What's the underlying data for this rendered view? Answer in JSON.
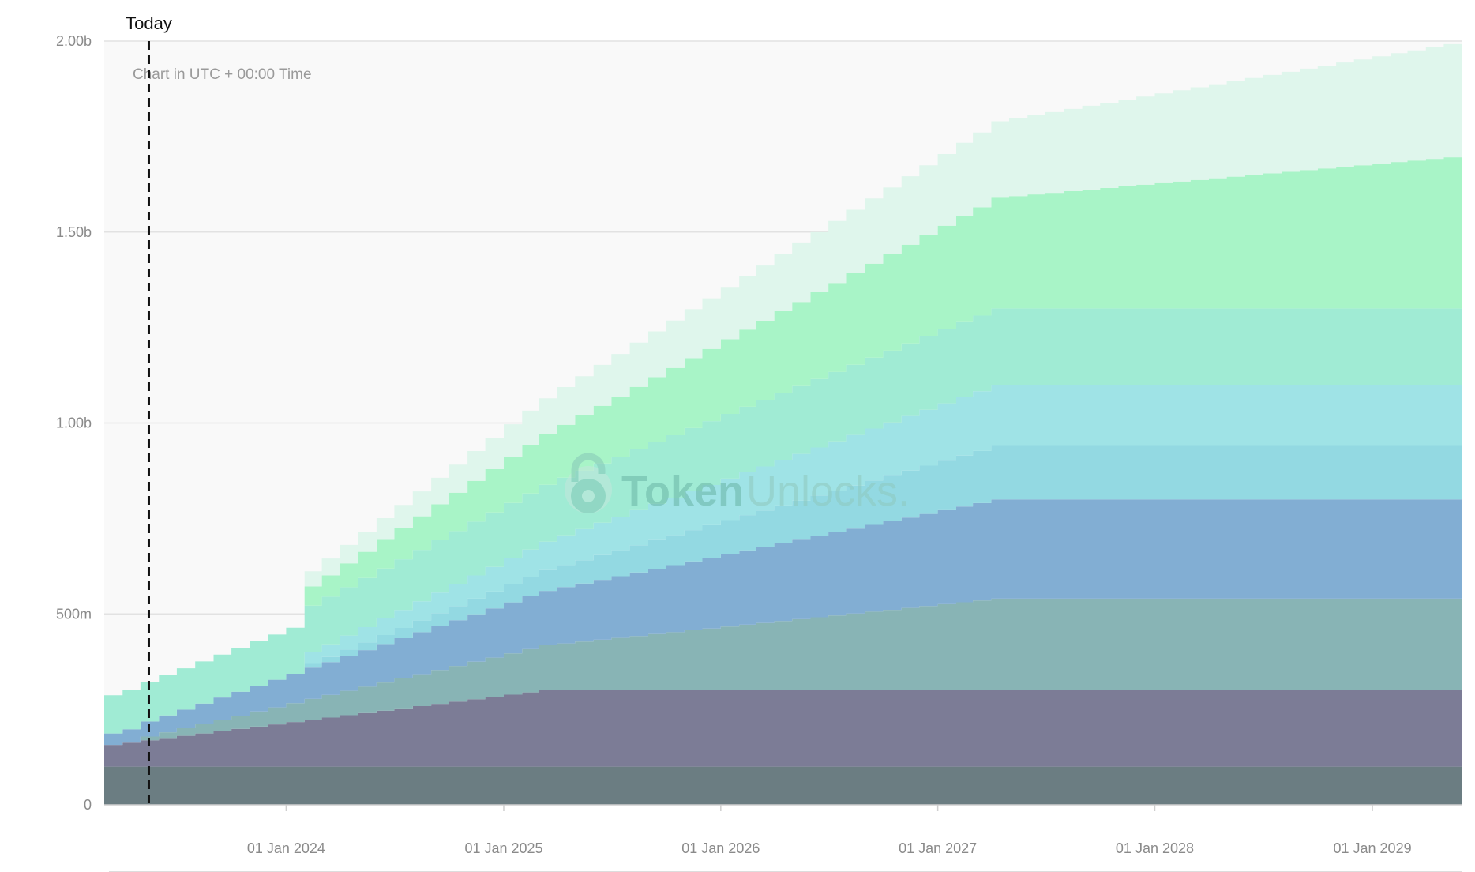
{
  "chart_data": {
    "type": "area",
    "stacked": true,
    "step": true,
    "title": "",
    "xlabel": "",
    "ylabel": "",
    "today_label": "Today",
    "today_date": "2023-05-15",
    "note": "Chart in UTC + 00:00 Time",
    "watermark": {
      "brand_bold": "Token",
      "brand_light": "Unlocks."
    },
    "x_range": [
      "2023-03-01",
      "2029-05-31"
    ],
    "ylim": [
      0,
      2000000000
    ],
    "y_ticks": [
      {
        "value": 0,
        "label": "0"
      },
      {
        "value": 500000000,
        "label": "500m"
      },
      {
        "value": 1000000000,
        "label": "1.00b"
      },
      {
        "value": 1500000000,
        "label": "1.50b"
      },
      {
        "value": 2000000000,
        "label": "2.00b"
      }
    ],
    "x_ticks": [
      {
        "date": "2024-01-01",
        "label": "01 Jan 2024"
      },
      {
        "date": "2025-01-01",
        "label": "01 Jan 2025"
      },
      {
        "date": "2026-01-01",
        "label": "01 Jan 2026"
      },
      {
        "date": "2027-01-01",
        "label": "01 Jan 2027"
      },
      {
        "date": "2028-01-01",
        "label": "01 Jan 2028"
      },
      {
        "date": "2029-01-01",
        "label": "01 Jan 2029"
      }
    ],
    "grid": true,
    "series_note": "values are per-series amounts (not cumulative), listed bottom to top",
    "series": [
      {
        "color": "#6b7d82",
        "steps": [
          {
            "start": "2023-03-01",
            "end": "2029-05-31",
            "values": [
              100000000
            ]
          }
        ]
      },
      {
        "color": "#7c7c96",
        "steps": [
          {
            "start": "2023-03-01",
            "end": "2025-03-01",
            "values": [
              57000000,
              200000000
            ]
          },
          {
            "start": "2025-03-01",
            "end": "2029-05-31",
            "values": [
              200000000
            ]
          }
        ]
      },
      {
        "color": "#88b4b5",
        "steps": [
          {
            "start": "2023-03-01",
            "end": "2023-05-01",
            "values": [
              0
            ]
          },
          {
            "start": "2023-05-01",
            "end": "2027-04-01",
            "values": [
              10000000,
              240000000
            ]
          },
          {
            "start": "2027-04-01",
            "end": "2029-05-31",
            "values": [
              240000000
            ]
          }
        ]
      },
      {
        "color": "#82aed3",
        "steps": [
          {
            "start": "2023-03-01",
            "end": "2027-04-01",
            "values": [
              30000000,
              260000000
            ]
          },
          {
            "start": "2027-04-01",
            "end": "2029-05-31",
            "values": [
              260000000
            ]
          }
        ]
      },
      {
        "color": "#93d9e2",
        "steps": [
          {
            "start": "2023-03-01",
            "end": "2024-02-01",
            "values": [
              0
            ]
          },
          {
            "start": "2024-02-01",
            "end": "2027-04-01",
            "values": [
              10000000,
              140000000
            ]
          },
          {
            "start": "2027-04-01",
            "end": "2029-05-31",
            "values": [
              140000000
            ]
          }
        ]
      },
      {
        "color": "#9fe3e6",
        "steps": [
          {
            "start": "2023-03-01",
            "end": "2024-02-01",
            "values": [
              0
            ]
          },
          {
            "start": "2024-02-01",
            "end": "2027-04-01",
            "values": [
              30000000,
              160000000
            ]
          },
          {
            "start": "2027-04-01",
            "end": "2029-05-31",
            "values": [
              160000000
            ]
          }
        ]
      },
      {
        "color": "#a0ebd4",
        "steps": [
          {
            "start": "2023-03-01",
            "end": "2027-04-01",
            "values": [
              100000000,
              200000000
            ]
          },
          {
            "start": "2027-04-01",
            "end": "2029-05-31",
            "values": [
              200000000
            ]
          }
        ]
      },
      {
        "color": "#a8f4c7",
        "steps": [
          {
            "start": "2023-03-01",
            "end": "2024-02-01",
            "values": [
              0
            ]
          },
          {
            "start": "2024-02-01",
            "end": "2027-04-01",
            "values": [
              50000000,
              290000000
            ]
          },
          {
            "start": "2027-04-01",
            "end": "2029-05-31",
            "values": [
              290000000,
              400000000
            ]
          }
        ]
      },
      {
        "color": "#dff6ec",
        "steps": [
          {
            "start": "2023-03-01",
            "end": "2024-02-01",
            "values": [
              0
            ]
          },
          {
            "start": "2024-02-01",
            "end": "2027-04-01",
            "values": [
              40000000,
              200000000
            ]
          },
          {
            "start": "2027-04-01",
            "end": "2029-05-31",
            "values": [
              200000000,
              300000000
            ]
          }
        ]
      }
    ]
  }
}
